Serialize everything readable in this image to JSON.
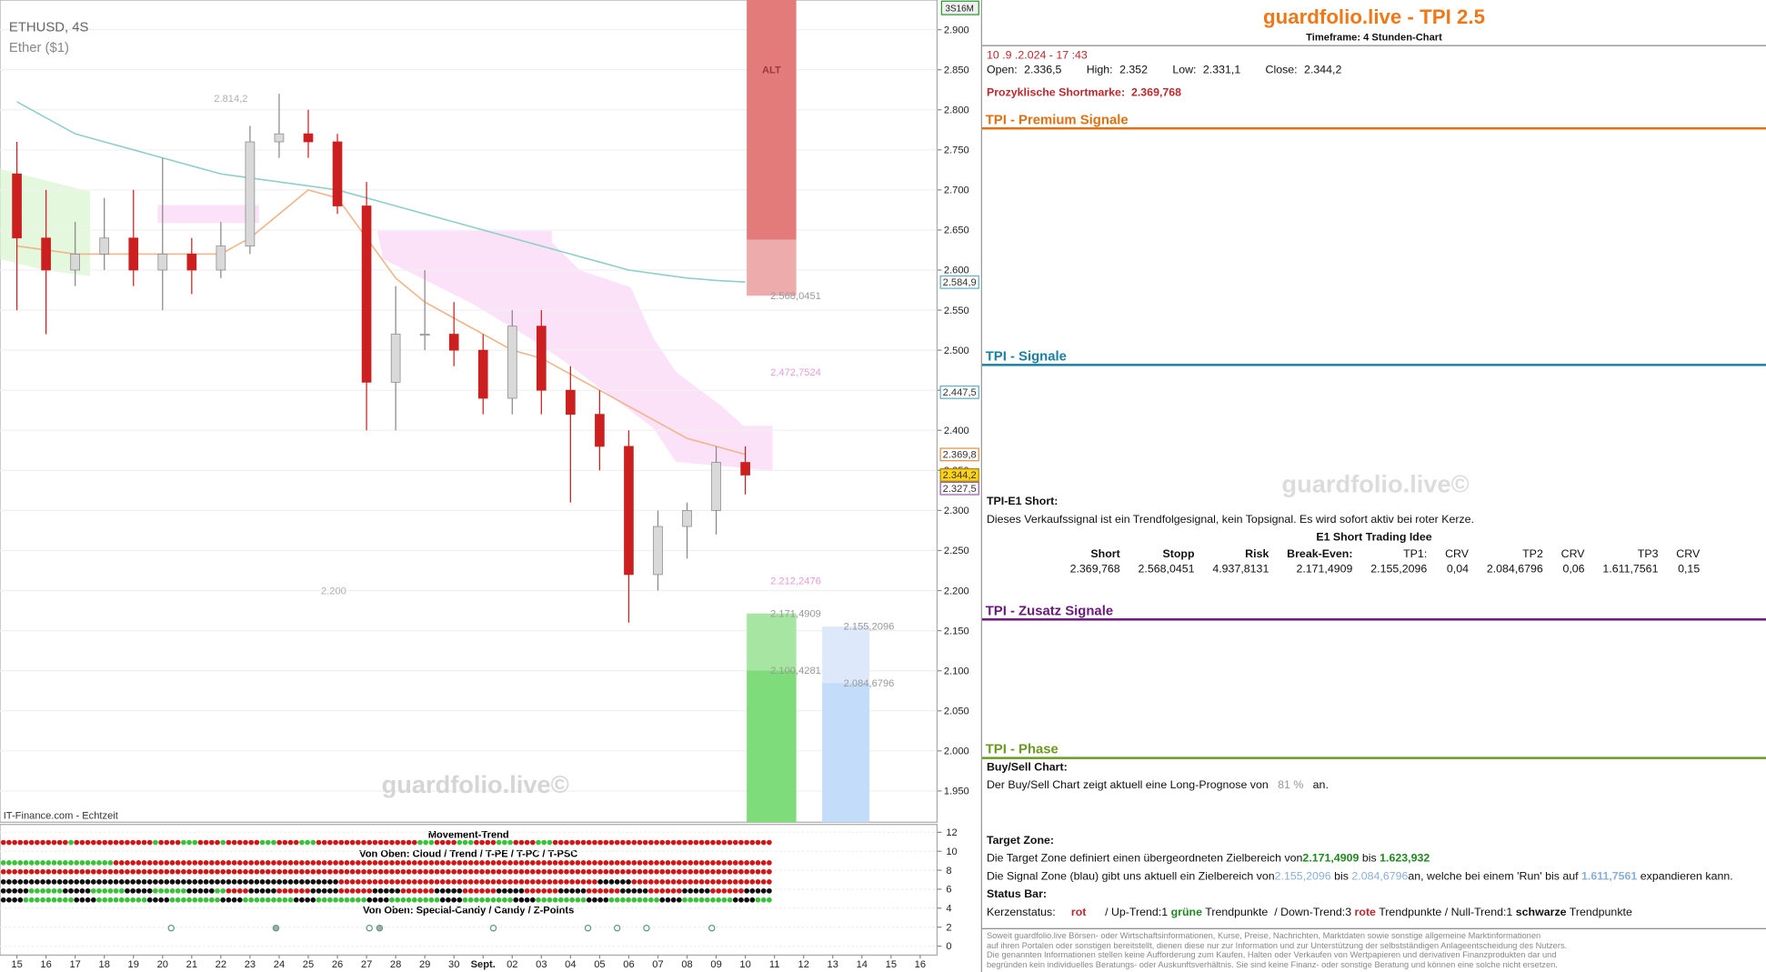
{
  "chart": {
    "type": "candlestick",
    "symbol": "ETHUSD, 4S",
    "name": "Ether ($1)",
    "source": "IT-Finance.com - Echtzeit",
    "watermark": "guardfolio.live©",
    "corner_label": "3S16M",
    "categories": [
      "15",
      "16",
      "17",
      "18",
      "19",
      "20",
      "21",
      "22",
      "23",
      "24",
      "25",
      "26",
      "27",
      "28",
      "29",
      "30",
      "Sept.",
      "02",
      "03",
      "04",
      "05",
      "06",
      "07",
      "08",
      "09",
      "10",
      "11",
      "12",
      "13",
      "14",
      "15",
      "16"
    ],
    "candles": {
      "open": [
        2.72,
        2.64,
        2.6,
        2.62,
        2.64,
        2.6,
        2.62,
        2.6,
        2.63,
        2.76,
        2.77,
        2.76,
        2.68,
        2.46,
        2.52,
        2.52,
        2.5,
        2.44,
        2.53,
        2.45,
        2.42,
        2.38,
        2.22,
        2.28,
        2.3,
        2.36
      ],
      "high": [
        2.76,
        2.7,
        2.66,
        2.69,
        2.7,
        2.74,
        2.64,
        2.66,
        2.78,
        2.82,
        2.8,
        2.77,
        2.71,
        2.58,
        2.6,
        2.56,
        2.52,
        2.55,
        2.55,
        2.48,
        2.45,
        2.4,
        2.3,
        2.31,
        2.38,
        2.38
      ],
      "low": [
        2.55,
        2.52,
        2.58,
        2.6,
        2.58,
        2.55,
        2.57,
        2.59,
        2.62,
        2.74,
        2.74,
        2.67,
        2.4,
        2.4,
        2.5,
        2.48,
        2.42,
        2.42,
        2.42,
        2.31,
        2.35,
        2.16,
        2.2,
        2.24,
        2.27,
        2.32
      ],
      "close": [
        2.64,
        2.6,
        2.62,
        2.64,
        2.6,
        2.62,
        2.6,
        2.63,
        2.76,
        2.77,
        2.76,
        2.68,
        2.46,
        2.52,
        2.52,
        2.5,
        2.44,
        2.53,
        2.45,
        2.42,
        2.38,
        2.22,
        2.28,
        2.3,
        2.36,
        2.3442
      ]
    },
    "up_color": "#d9d9d9",
    "down_color": "#cc2020",
    "overlays": [
      {
        "color": "#8fd0c8",
        "values": [
          2.81,
          2.79,
          2.77,
          2.76,
          2.75,
          2.74,
          2.73,
          2.72,
          2.715,
          2.71,
          2.705,
          2.7,
          2.69,
          2.68,
          2.67,
          2.66,
          2.65,
          2.64,
          2.63,
          2.62,
          2.61,
          2.6,
          2.595,
          2.59,
          2.587,
          2.585
        ]
      },
      {
        "color": "#f2b48a",
        "values": [
          2.63,
          2.625,
          2.62,
          2.62,
          2.62,
          2.62,
          2.62,
          2.62,
          2.64,
          2.67,
          2.7,
          2.69,
          2.64,
          2.59,
          2.56,
          2.54,
          2.52,
          2.5,
          2.49,
          2.47,
          2.45,
          2.43,
          2.41,
          2.39,
          2.38,
          2.37
        ]
      }
    ],
    "ylim": [
      1.911,
      2.937
    ],
    "yticks": [
      {
        "value": 2.9,
        "label": "2.900"
      },
      {
        "value": 2.85,
        "label": "2.850"
      },
      {
        "value": 2.8,
        "label": "2.800"
      },
      {
        "value": 2.75,
        "label": "2.750"
      },
      {
        "value": 2.7,
        "label": "2.700"
      },
      {
        "value": 2.65,
        "label": "2.650"
      },
      {
        "value": 2.6,
        "label": "2.600"
      },
      {
        "value": 2.55,
        "label": "2.550"
      },
      {
        "value": 2.5,
        "label": "2.500"
      },
      {
        "value": 2.45,
        "label": "2.450"
      },
      {
        "value": 2.4,
        "label": "2.400"
      },
      {
        "value": 2.35,
        "label": "2.350"
      },
      {
        "value": 2.3,
        "label": "2.300"
      },
      {
        "value": 2.25,
        "label": "2.250"
      },
      {
        "value": 2.2,
        "label": "2.200"
      },
      {
        "value": 2.15,
        "label": "2.150"
      },
      {
        "value": 2.1,
        "label": "2.100"
      },
      {
        "value": 2.05,
        "label": "2.050"
      },
      {
        "value": 2.0,
        "label": "2.000"
      },
      {
        "value": 1.95,
        "label": "1.950"
      }
    ],
    "price_tags": [
      {
        "value": 2.5849,
        "label": "2.584,9",
        "color": "#5fb3c8",
        "fill": "#ffffff"
      },
      {
        "value": 2.4475,
        "label": "2.447,5",
        "color": "#5fb3c8",
        "fill": "#ffffff"
      },
      {
        "value": 2.3698,
        "label": "2.369,8",
        "color": "#e8903c",
        "fill": "#ffffff"
      },
      {
        "value": 2.3442,
        "label": "2.344,2",
        "color": "#b08a00",
        "fill": "#ffd21a"
      },
      {
        "value": 2.3275,
        "label": "2.327,5",
        "color": "#9a5ab8",
        "fill": "#ffffff"
      }
    ],
    "levels": [
      {
        "value": 2.8142,
        "label": "2.814,2",
        "color": "#b0b0b0"
      },
      {
        "value": 2.2,
        "label": "2.200",
        "color": "#b0b0b0"
      },
      {
        "value": 2.5680451,
        "label": "2.568,0451",
        "color": "#999999"
      },
      {
        "value": 2.4727524,
        "label": "2.472,7524",
        "color": "#e79be0"
      },
      {
        "value": 2.2122476,
        "label": "2.212,2476",
        "color": "#e79be0"
      },
      {
        "value": 2.1714909,
        "label": "2.171,4909",
        "color": "#999999"
      },
      {
        "value": 2.1004281,
        "label": "2.100,4281",
        "color": "#999999"
      },
      {
        "value": 2.1552096,
        "label": "2.155,2096",
        "color": "#999999"
      },
      {
        "value": 2.0846796,
        "label": "2.084,6796",
        "color": "#999999"
      }
    ],
    "zones": [
      {
        "label": "ALT",
        "top": 2.937,
        "split": 2.638,
        "bottom": 2.5680451,
        "upper_color": "#e37b7b",
        "lower_color": "#eeabab"
      },
      {
        "top": 2.1714909,
        "split": 2.1004281,
        "bottom": 1.911,
        "upper_color": "#a7e6a2",
        "lower_color": "#7fdc7a"
      },
      {
        "top": 2.1552096,
        "split": 2.0846796,
        "bottom": 1.911,
        "upper_color": "#dde9fb",
        "lower_color": "#c3dcfa"
      }
    ]
  },
  "indicator": {
    "title": "Movement-Trend",
    "subtitle_top": "Von Oben: Cloud / Trend / T-PE / T-PC / T-PSC",
    "subtitle_bottom": "Von Oben: Special-Candy / Candy / Z-Points",
    "ylim": [
      0,
      12
    ],
    "yticks": [
      0,
      2,
      4,
      6,
      8,
      10,
      12
    ]
  },
  "panel": {
    "title": "guardfolio.live - TPI 2.5",
    "subtitle": "Timeframe: 4 Stunden-Chart",
    "datetime": "10 .9 .2.024 - 17 :43",
    "ohlc": [
      [
        "Open:",
        "2.336,5"
      ],
      [
        "High:",
        "2.352"
      ],
      [
        "Low:",
        "2.331,1"
      ],
      [
        "Close:",
        "2.344,2"
      ]
    ],
    "shortmark_label": "Prozyklische Shortmarke:",
    "shortmark_value": "2.369,768",
    "sections": [
      "TPI - Premium Signale",
      "TPI - Signale",
      "TPI - Zusatz Signale",
      "TPI - Phase"
    ],
    "watermark": "guardfolio.live©",
    "e1_title": "TPI-E1 Short:",
    "e1_text": "Dieses Verkaufssignal ist ein Trendfolgesignal, kein Topsignal. Es wird sofort aktiv bei roter Kerze.",
    "idea_title": "E1 Short Trading Idee",
    "idea_header": [
      "Short",
      "Stopp",
      "Risk",
      "Break-Even:",
      "TP1:",
      "CRV",
      "TP2",
      "CRV",
      "TP3",
      "CRV"
    ],
    "idea_row": [
      "2.369,768",
      "2.568,0451",
      "4.937,8131",
      "2.171,4909",
      "2.155,2096",
      "0,04",
      "2.084,6796",
      "0,06",
      "1.611,7561",
      "0,15"
    ],
    "buysell_title": "Buy/Sell Chart:",
    "buysell_text": [
      "Der Buy/Sell Chart zeigt aktuell eine Long-Prognose von",
      "81 %",
      "an."
    ],
    "target_title": "Target Zone:",
    "target_text": [
      "Die Target Zone definiert einen übergeordneten Zielbereich von",
      "2.171,4909",
      "bis",
      "1.623,932"
    ],
    "signal_text": [
      "Die Signal Zone (blau) gibt uns aktuell ein Zielbereich von",
      "2.155,2096",
      "bis",
      "2.084,6796",
      "an, welche bei einem 'Run' bis auf",
      "1.611,7561",
      "expandieren kann."
    ],
    "status_title": "Status Bar:",
    "status_text": [
      "Kerzenstatus:",
      "rot",
      "/ Up-Trend:1",
      "grüne",
      "Trendpunkte",
      "/ Down-Trend:3",
      "rote",
      "Trendpunkte",
      "/ Null-Trend:1",
      "schwarze",
      "Trendpunkte"
    ],
    "disclaimer": [
      "Soweit guardfolio.live Börsen- oder Wirtschaftsinformationen, Kurse, Preise, Nachrichten, Marktdaten sowie sonstige allgemeine Marktinformationen",
      "auf ihren Portalen oder sonstigen bereitstellt, dienen diese nur zur Information und zur Unterstützung der selbstständigen Anlageentscheidung des Nutzers.",
      "Die genannten Informationen stellen keine Aufforderung zum Kaufen, Halten oder Verkaufen von Wertpapieren und derivativen Finanzprodukten dar und",
      "begründen kein individuelles Beratungs- oder Auskunftsverhältnis. Sie sind keine Finanz- oder sonstige Beratung und können eine solche nicht ersetzen."
    ]
  }
}
